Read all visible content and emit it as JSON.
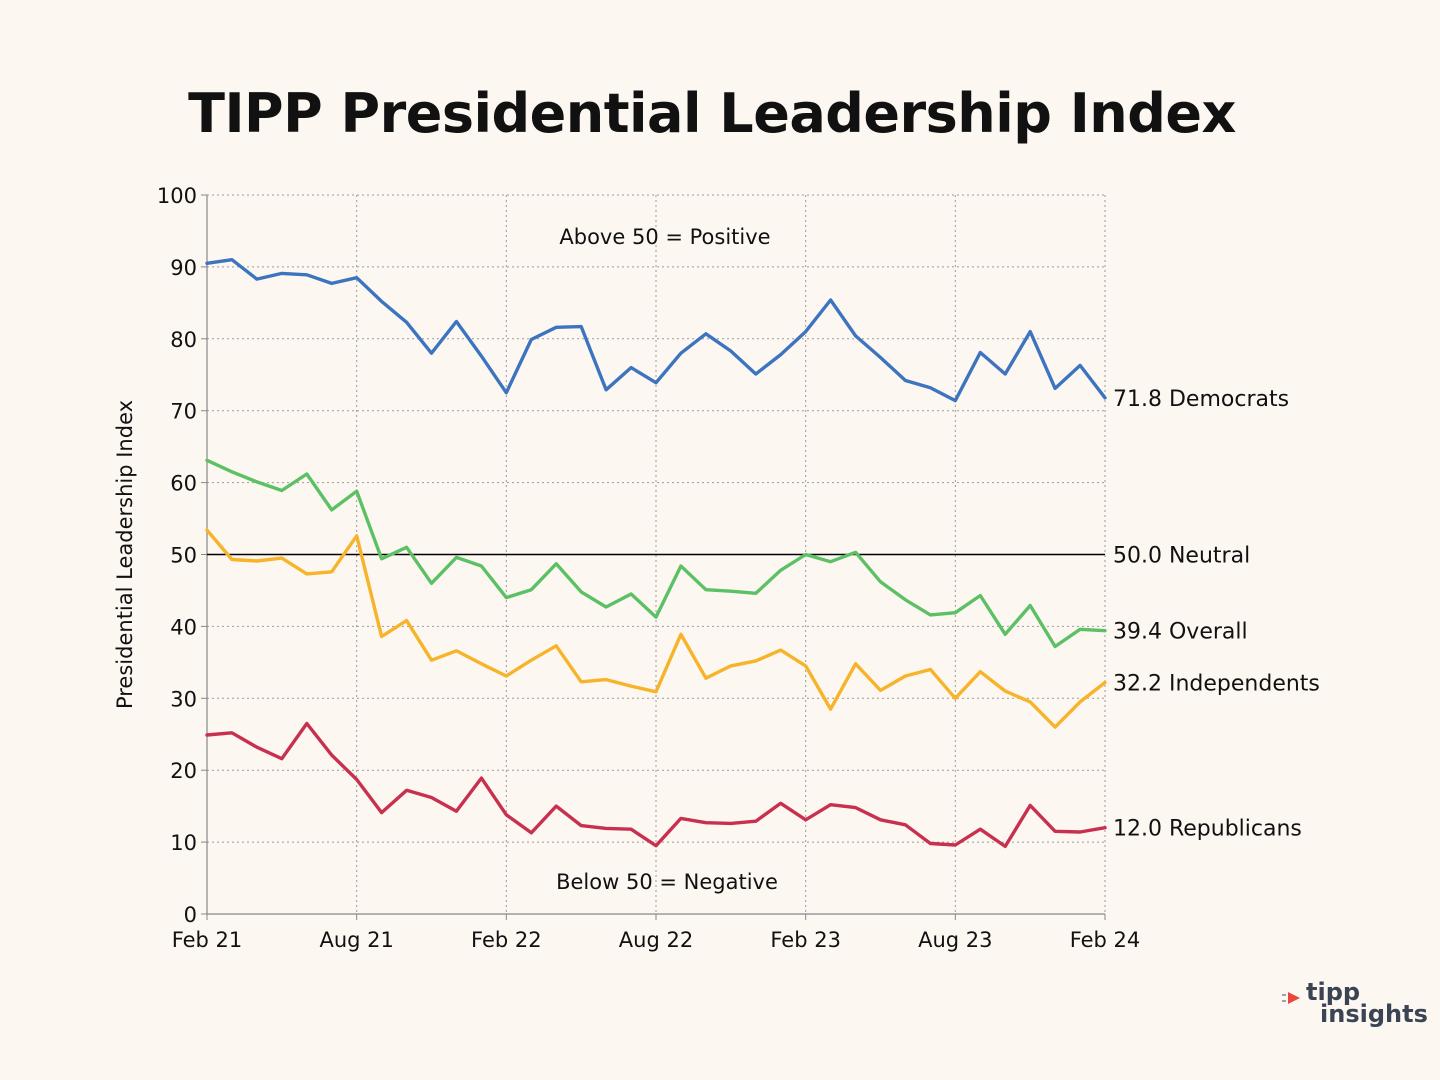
{
  "chart_data": {
    "type": "line",
    "title": "TIPP Presidential Leadership Index",
    "ylabel": "Presidential Leadership Index",
    "xlabel": "",
    "ylim": [
      0,
      100
    ],
    "yticks": [
      0,
      10,
      20,
      30,
      40,
      50,
      60,
      70,
      80,
      90,
      100
    ],
    "xlim": [
      0,
      36
    ],
    "xticks": [
      {
        "pos": 0,
        "label": "Feb 21"
      },
      {
        "pos": 6,
        "label": "Aug 21"
      },
      {
        "pos": 12,
        "label": "Feb 22"
      },
      {
        "pos": 18,
        "label": "Aug 22"
      },
      {
        "pos": 24,
        "label": "Feb 23"
      },
      {
        "pos": 30,
        "label": "Aug 23"
      },
      {
        "pos": 36,
        "label": "Feb 24"
      }
    ],
    "grid": true,
    "annotations": {
      "above": "Above 50 = Positive",
      "below": "Below 50 = Negative"
    },
    "reference_line": {
      "value": 50,
      "label": "50.0 Neutral",
      "color": "#000000"
    },
    "series": [
      {
        "name": "Democrats",
        "end_label": "71.8 Democrats",
        "color": "#3d74c0",
        "values": [
          90.5,
          91.0,
          88.3,
          89.1,
          88.9,
          87.7,
          88.5,
          85.2,
          82.3,
          78.0,
          82.4,
          77.6,
          72.5,
          79.9,
          81.6,
          81.7,
          72.9,
          76.0,
          73.9,
          78.0,
          80.7,
          78.3,
          75.1,
          77.8,
          81.0,
          85.4,
          80.4,
          77.4,
          74.2,
          73.2,
          71.4,
          78.1,
          75.1,
          81.0,
          73.1,
          76.3,
          71.8
        ]
      },
      {
        "name": "Overall",
        "end_label": "39.4 Overall",
        "color": "#5cc064",
        "values": [
          63.1,
          61.5,
          60.1,
          58.9,
          61.2,
          56.2,
          58.8,
          49.4,
          51.0,
          46.0,
          49.6,
          48.4,
          44.0,
          45.1,
          48.7,
          44.8,
          42.7,
          44.5,
          41.3,
          48.4,
          45.1,
          44.9,
          44.6,
          47.8,
          50.0,
          49.0,
          50.3,
          46.2,
          43.7,
          41.6,
          41.9,
          44.3,
          38.9,
          42.9,
          37.2,
          39.6,
          39.4
        ]
      },
      {
        "name": "Independents",
        "end_label": "32.2 Independents",
        "color": "#f7b329",
        "values": [
          53.4,
          49.3,
          49.1,
          49.5,
          47.3,
          47.6,
          52.6,
          38.6,
          40.8,
          35.3,
          36.6,
          34.8,
          33.1,
          35.3,
          37.3,
          32.3,
          32.6,
          31.7,
          30.9,
          38.9,
          32.8,
          34.5,
          35.2,
          36.7,
          34.5,
          28.5,
          34.8,
          31.1,
          33.1,
          34.0,
          30.0,
          33.7,
          31.0,
          29.5,
          26.0,
          29.5,
          32.2
        ]
      },
      {
        "name": "Republicans",
        "end_label": "12.0 Republicans",
        "color": "#c8304f",
        "values": [
          24.9,
          25.2,
          23.2,
          21.6,
          26.5,
          22.1,
          18.7,
          14.1,
          17.2,
          16.2,
          14.3,
          18.9,
          13.8,
          11.3,
          15.0,
          12.3,
          11.9,
          11.8,
          9.5,
          13.3,
          12.7,
          12.6,
          12.9,
          15.4,
          13.1,
          15.2,
          14.8,
          13.1,
          12.4,
          9.8,
          9.6,
          11.8,
          9.4,
          15.1,
          11.5,
          11.4,
          12.0
        ]
      }
    ]
  },
  "logo": {
    "line1": "tipp",
    "line2": "insights",
    "accent_color": "#e8473b"
  }
}
